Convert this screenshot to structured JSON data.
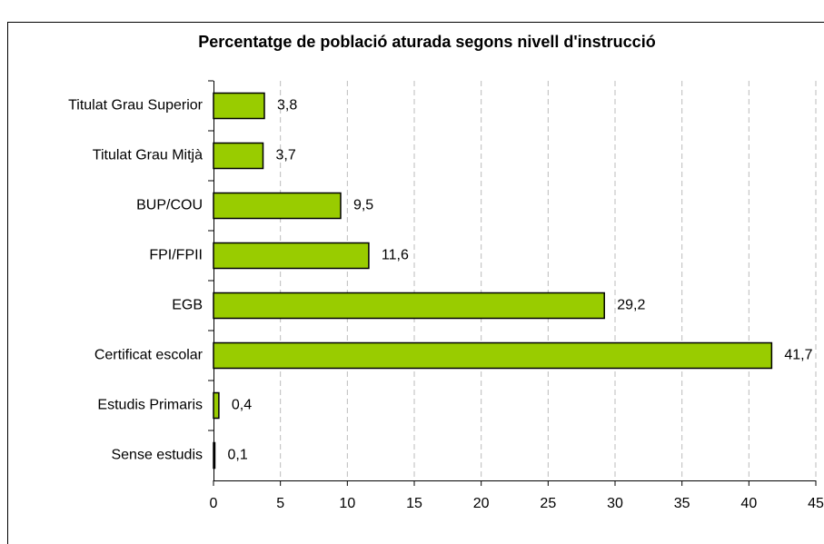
{
  "chart_data": {
    "type": "bar",
    "orientation": "horizontal",
    "title": "Percentatge de població aturada segons nivell d'instrucció",
    "categories": [
      "Titulat Grau Superior",
      "Titulat Grau Mitjà",
      "BUP/COU",
      "FPI/FPII",
      "EGB",
      "Certificat escolar",
      "Estudis Primaris",
      "Sense estudis"
    ],
    "values": [
      3.8,
      3.7,
      9.5,
      11.6,
      29.2,
      41.7,
      0.4,
      0.1
    ],
    "value_labels": [
      "3,8",
      "3,7",
      "9,5",
      "11,6",
      "29,2",
      "41,7",
      "0,4",
      "0,1"
    ],
    "color": "#99cc00",
    "xlim": [
      0,
      45
    ],
    "xticks": [
      0,
      5,
      10,
      15,
      20,
      25,
      30,
      35,
      40,
      45
    ],
    "grid": true
  }
}
